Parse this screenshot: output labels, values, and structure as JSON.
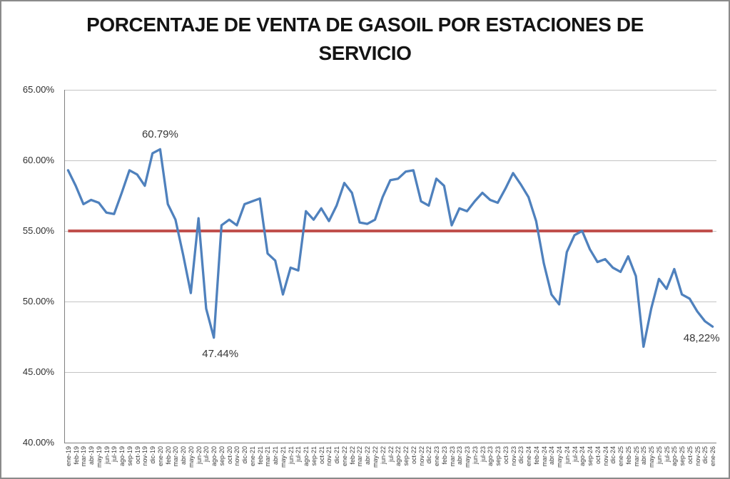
{
  "window": {
    "background": "#ffffff",
    "border_color": "#8a8a8a"
  },
  "chart_data": {
    "type": "line",
    "title_lines": [
      "PORCENTAJE DE VENTA DE GASOIL POR ESTACIONES DE",
      "SERVICIO"
    ],
    "ylim": [
      40,
      65
    ],
    "ytick_labels": [
      "65.00%",
      "60.00%",
      "55.00%",
      "50.00%",
      "45.00%",
      "40.00%"
    ],
    "grid": true,
    "legend": "none",
    "categories": [
      "ene-19",
      "feb-19",
      "mar-19",
      "abr-19",
      "may-19",
      "jun-19",
      "jul-19",
      "ago-19",
      "sep-19",
      "oct-19",
      "nov-19",
      "dic-19",
      "ene-20",
      "feb-20",
      "mar-20",
      "abr-20",
      "may-20",
      "jun-20",
      "jul-20",
      "ago-20",
      "sep-20",
      "oct-20",
      "nov-20",
      "dic-20",
      "ene-21",
      "feb-21",
      "mar-21",
      "abr-21",
      "may-21",
      "jun-21",
      "jul-21",
      "ago-21",
      "sep-21",
      "oct-21",
      "nov-21",
      "dic-21",
      "ene-22",
      "feb-22",
      "mar-22",
      "abr-22",
      "may-22",
      "jun-22",
      "jul-22",
      "ago-22",
      "sep-22",
      "oct-22",
      "nov-22",
      "dic-22",
      "ene-23",
      "feb-23",
      "mar-23",
      "abr-23",
      "may-23",
      "jun-23",
      "jul-23",
      "ago-23",
      "sep-23",
      "oct-23",
      "nov-23",
      "dic-23",
      "ene-24",
      "feb-24",
      "mar-24",
      "abr-24",
      "may-24",
      "jun-24",
      "jul-24",
      "ago-24",
      "sep-24",
      "oct-24",
      "nov-24",
      "dic-24",
      "ene-25",
      "feb-25",
      "mar-25",
      "abr-25",
      "may-25",
      "jun-25",
      "jul-25",
      "ago-25",
      "sep-25",
      "oct-25",
      "nov-25",
      "dic-25",
      "ene-26"
    ],
    "series": [
      {
        "name": "porcentaje-venta-gasoil",
        "color": "#4F81BD",
        "values": [
          59.3,
          58.2,
          56.9,
          57.2,
          57.0,
          56.3,
          56.2,
          57.7,
          59.3,
          59.0,
          58.2,
          60.5,
          60.79,
          56.9,
          55.8,
          53.3,
          50.6,
          55.9,
          49.5,
          47.44,
          55.4,
          55.8,
          55.4,
          56.9,
          57.1,
          57.3,
          53.4,
          52.9,
          50.5,
          52.4,
          52.2,
          56.4,
          55.8,
          56.6,
          55.7,
          56.8,
          58.4,
          57.7,
          55.6,
          55.5,
          55.8,
          57.4,
          58.6,
          58.7,
          59.2,
          59.3,
          57.1,
          56.8,
          58.7,
          58.2,
          55.4,
          56.6,
          56.4,
          57.1,
          57.7,
          57.2,
          57.0,
          58.0,
          59.1,
          58.3,
          57.4,
          55.7,
          52.7,
          50.5,
          49.8,
          53.5,
          54.7,
          55.0,
          53.7,
          52.8,
          53.0,
          52.4,
          52.1,
          53.2,
          51.8,
          46.8,
          49.5,
          51.6,
          50.9,
          52.3,
          50.5,
          50.2,
          49.3,
          48.6,
          48.22
        ]
      },
      {
        "name": "linea-referencia",
        "color": "#C0504D",
        "constant_value": 55.0
      }
    ],
    "annotations": [
      {
        "text": "60.79%",
        "index": 12,
        "placement": "above"
      },
      {
        "text": "47.44%",
        "index": 19,
        "placement": "below"
      },
      {
        "text": "48,22%",
        "index": 84,
        "placement": "below-left"
      }
    ]
  }
}
